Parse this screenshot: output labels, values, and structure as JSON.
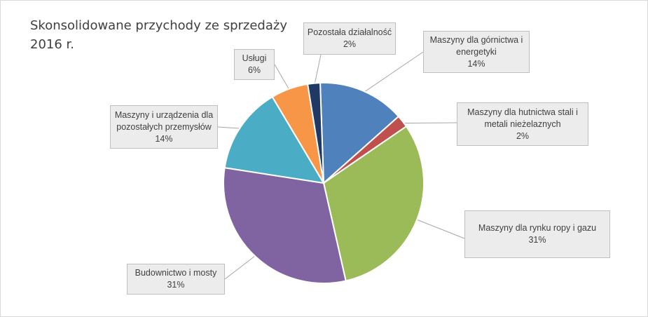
{
  "chart_data": {
    "type": "pie",
    "title": "Skonsolidowane przychody ze sprzedaży 2016 r.",
    "title_lines": [
      "Skonsolidowane przychody ze sprzedaży",
      "2016 r."
    ],
    "slices": [
      {
        "label": "Maszyny dla górnictwa i energetyki",
        "label_lines": [
          "Maszyny dla górnictwa i",
          "energetyki"
        ],
        "value": 14,
        "value_label": "14%",
        "color": "#4f81bd"
      },
      {
        "label": "Maszyny dla hutnictwa stali i metali nieżelaznych",
        "label_lines": [
          "Maszyny dla hutnictwa stali i",
          "metali nieżelaznych"
        ],
        "value": 2,
        "value_label": "2%",
        "color": "#c0504d"
      },
      {
        "label": "Maszyny dla rynku ropy i gazu",
        "label_lines": [
          "Maszyny dla rynku ropy i gazu"
        ],
        "value": 31,
        "value_label": "31%",
        "color": "#9bbb59"
      },
      {
        "label": "Budownictwo i mosty",
        "label_lines": [
          "Budownictwo i mosty"
        ],
        "value": 31,
        "value_label": "31%",
        "color": "#8064a2"
      },
      {
        "label": "Maszyny i urządzenia dla pozostałych przemysłów",
        "label_lines": [
          "Maszyny i urządzenia dla",
          "pozostałych przemysłów"
        ],
        "value": 14,
        "value_label": "14%",
        "color": "#4bacc6"
      },
      {
        "label": "Usługi",
        "label_lines": [
          "Usługi"
        ],
        "value": 6,
        "value_label": "6%",
        "color": "#f79646"
      },
      {
        "label": "Pozostała działalność",
        "label_lines": [
          "Pozostała działalność"
        ],
        "value": 2,
        "value_label": "2%",
        "color": "#1f3864"
      }
    ]
  }
}
